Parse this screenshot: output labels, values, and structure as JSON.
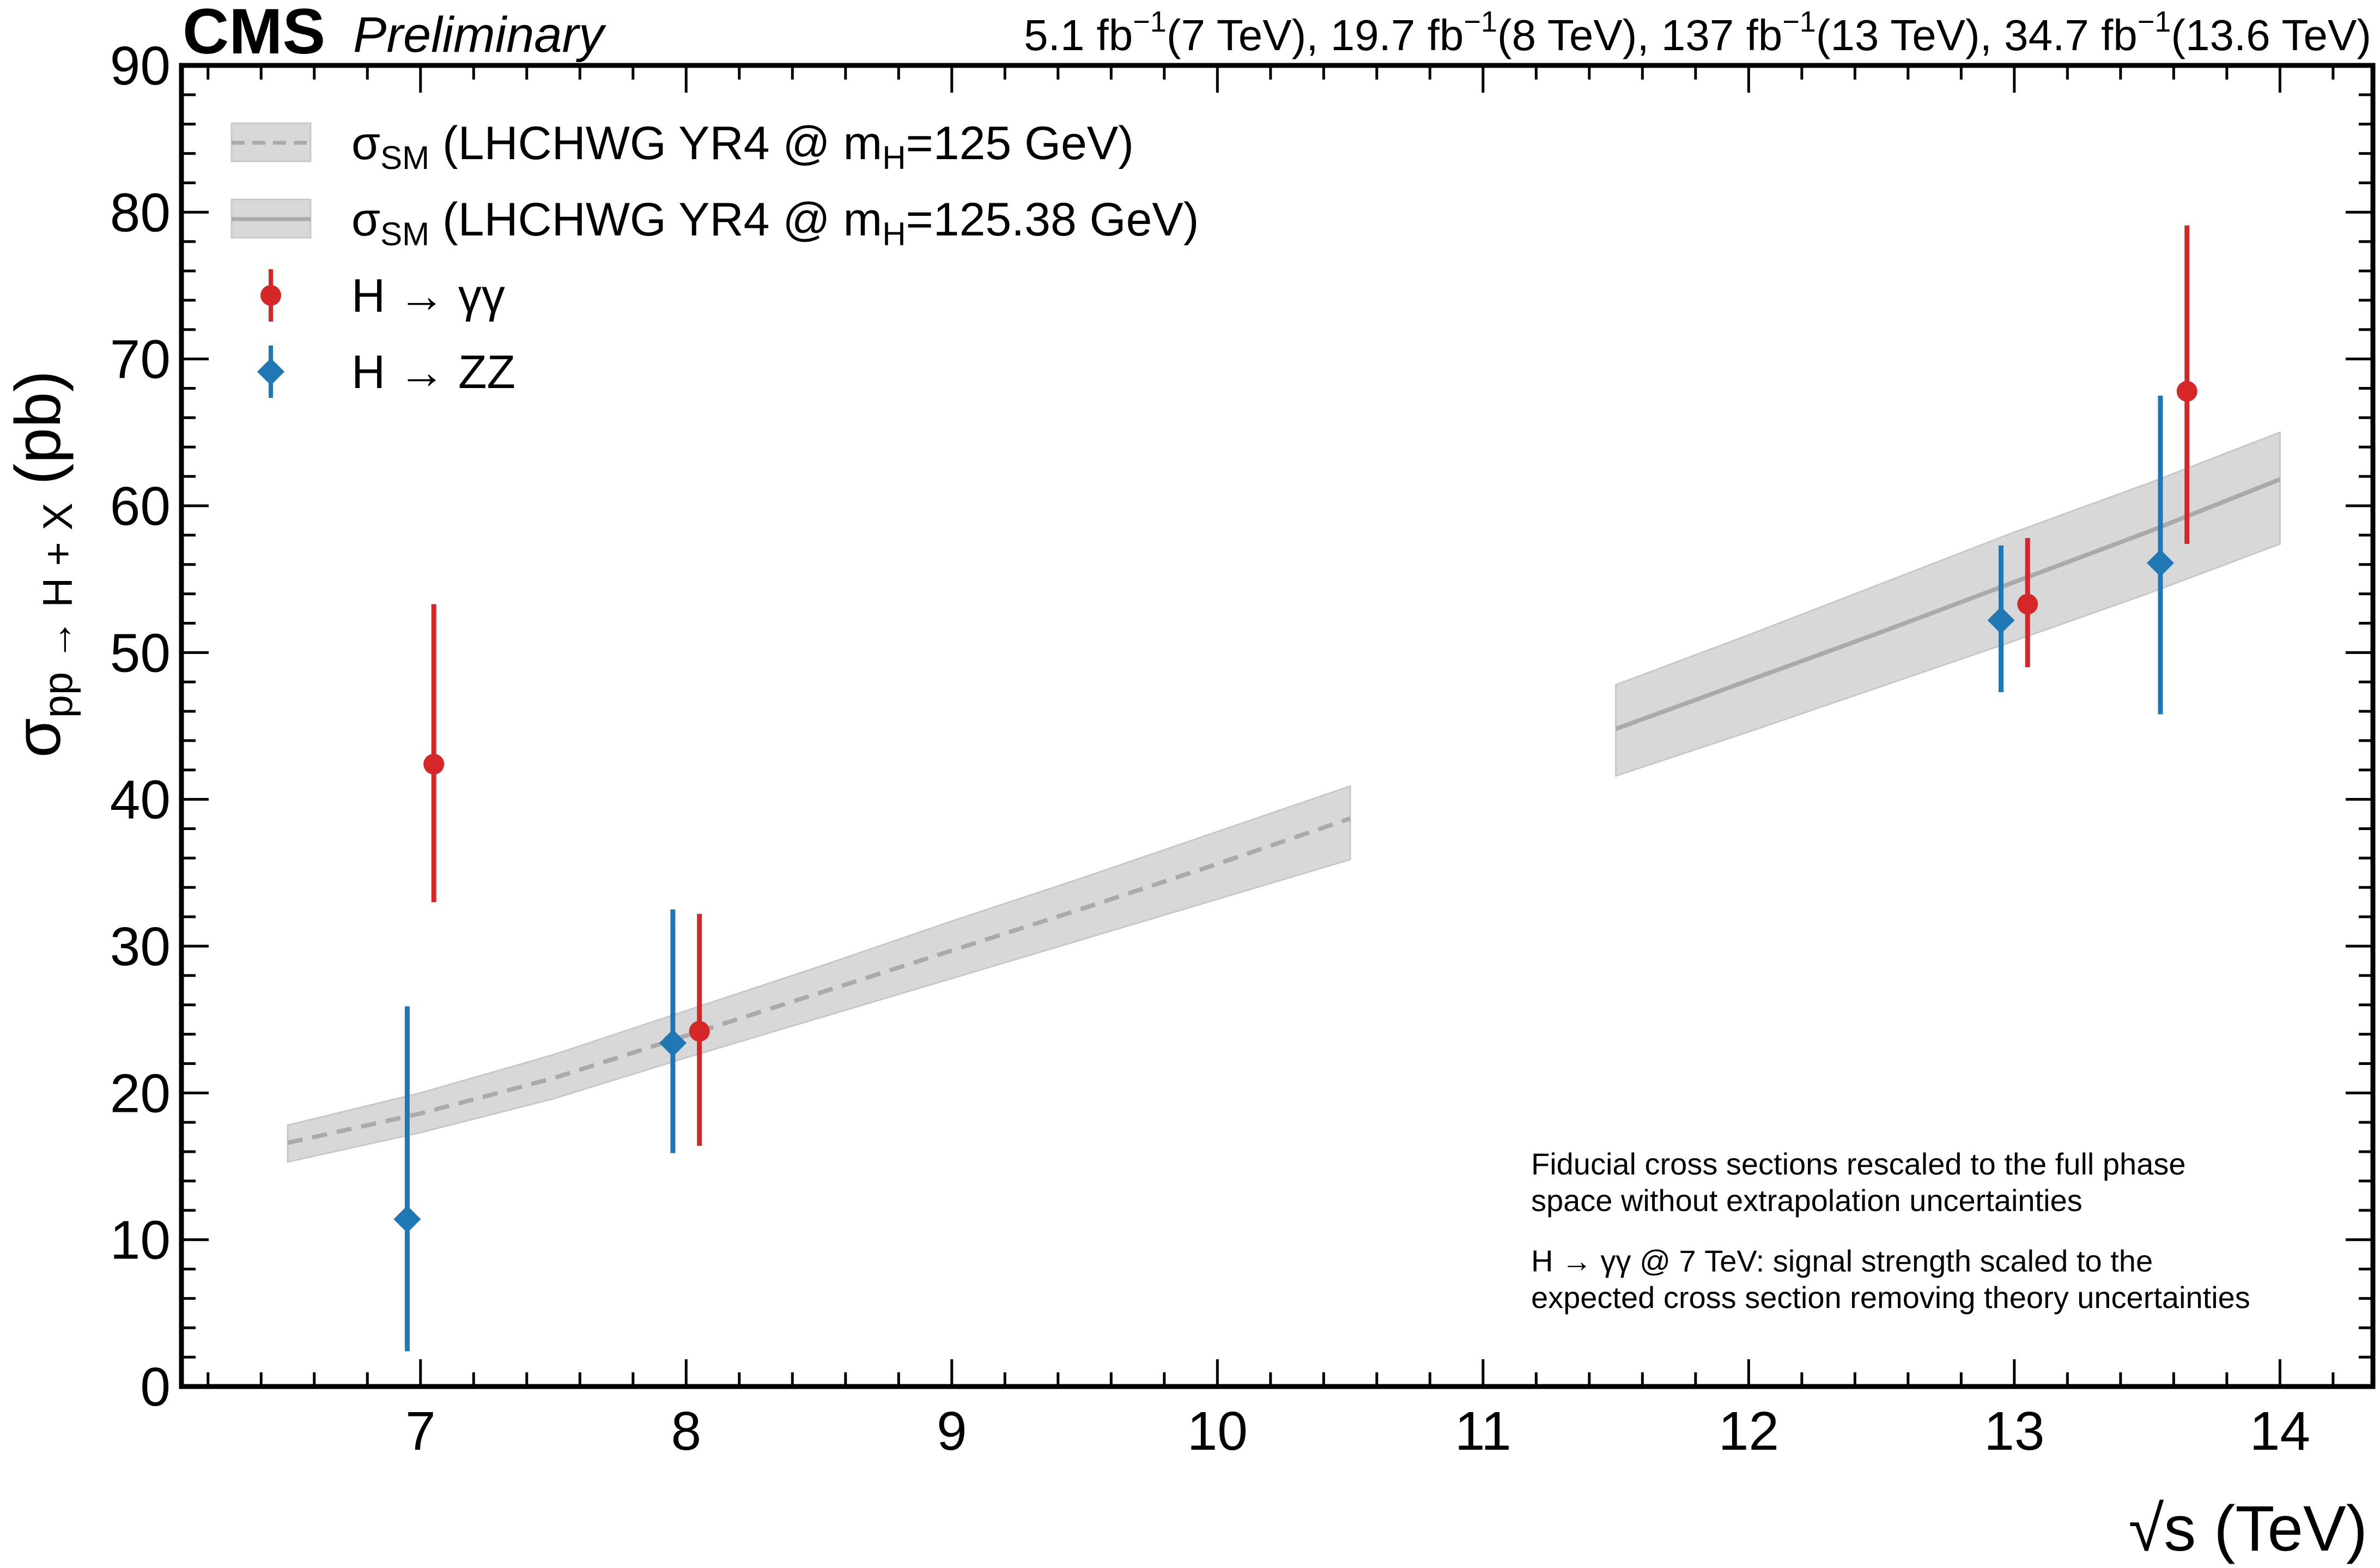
{
  "header": {
    "experiment": "CMS",
    "status": "Preliminary",
    "lumi_parts": [
      {
        "base": "5.1 fb",
        "sup": "−1",
        "tail": "(7 TeV), "
      },
      {
        "base": "19.7 fb",
        "sup": "−1",
        "tail": "(8 TeV), "
      },
      {
        "base": "137 fb",
        "sup": "−1",
        "tail": "(13 TeV), "
      },
      {
        "base": "34.7 fb",
        "sup": "−1",
        "tail": "(13.6 TeV)"
      }
    ]
  },
  "legend": [
    {
      "key": "sm125",
      "pre": "σ",
      "sub": "SM",
      "mid": " (LHCHWG YR4 @ m",
      "sub2": "H",
      "post": "=125 GeV)"
    },
    {
      "key": "sm12538",
      "pre": "σ",
      "sub": "SM",
      "mid": " (LHCHWG YR4 @ m",
      "sub2": "H",
      "post": "=125.38 GeV)"
    },
    {
      "key": "hgg",
      "pre": "H → γγ",
      "sub": "",
      "mid": "",
      "sub2": "",
      "post": ""
    },
    {
      "key": "hzz",
      "pre": "H → ZZ",
      "sub": "",
      "mid": "",
      "sub2": "",
      "post": ""
    }
  ],
  "notes": [
    "Fiducial cross sections rescaled to the full phase",
    "space without extrapolation uncertainties",
    "H → γγ @ 7 TeV: signal strength scaled to the",
    "expected cross section removing theory uncertainties"
  ],
  "chart_data": {
    "type": "scatter",
    "title": "",
    "xlabel": {
      "main": "√s",
      "unit": "(TeV)"
    },
    "ylabel": {
      "pre": "σ",
      "sub": "pp → H + X",
      "post": "(pb)"
    },
    "xlim": [
      6.1,
      14.35
    ],
    "ylim": [
      0,
      90
    ],
    "x_ticks": [
      7,
      8,
      9,
      10,
      11,
      12,
      13,
      14
    ],
    "y_ticks": [
      0,
      10,
      20,
      30,
      40,
      50,
      60,
      70,
      80,
      90
    ],
    "bands": [
      {
        "name": "σSM (LHCHWG YR4 @ mH=125 GeV)",
        "style": "dashed",
        "line_color": "#aaaaaa",
        "fill_color": "#d8d8d8",
        "x": [
          6.5,
          7.0,
          7.5,
          8.0,
          8.5,
          9.0,
          9.5,
          10.0,
          10.5
        ],
        "y": [
          16.6,
          18.6,
          21.0,
          23.9,
          26.8,
          29.7,
          32.6,
          35.6,
          38.7
        ],
        "y_low": [
          15.3,
          17.3,
          19.6,
          22.4,
          25.1,
          27.8,
          30.5,
          33.2,
          35.9
        ],
        "y_high": [
          17.8,
          20.0,
          22.6,
          25.6,
          28.6,
          31.7,
          34.7,
          37.8,
          40.9
        ]
      },
      {
        "name": "σSM (LHCHWG YR4 @ mH=125.38 GeV)",
        "style": "solid",
        "line_color": "#aaaaaa",
        "fill_color": "#d8d8d8",
        "x": [
          11.5,
          12.0,
          12.5,
          13.0,
          13.5,
          14.0
        ],
        "y": [
          44.8,
          48.1,
          51.4,
          54.8,
          58.2,
          61.8
        ],
        "y_low": [
          41.6,
          44.6,
          47.7,
          50.8,
          54.0,
          57.4
        ],
        "y_high": [
          47.8,
          51.2,
          54.7,
          58.2,
          61.5,
          65.0
        ]
      }
    ],
    "series": [
      {
        "name": "H → γγ",
        "marker": "circle",
        "color": "#d62728",
        "points": [
          {
            "x": 7.05,
            "y": 42.4,
            "ylo": 33.0,
            "yhi": 53.3
          },
          {
            "x": 8.05,
            "y": 24.2,
            "ylo": 16.4,
            "yhi": 32.2
          },
          {
            "x": 13.05,
            "y": 53.3,
            "ylo": 49.0,
            "yhi": 57.8
          },
          {
            "x": 13.65,
            "y": 67.8,
            "ylo": 57.4,
            "yhi": 79.1
          }
        ]
      },
      {
        "name": "H → ZZ",
        "marker": "diamond",
        "color": "#1f77b4",
        "points": [
          {
            "x": 6.95,
            "y": 11.4,
            "ylo": 2.4,
            "yhi": 25.9
          },
          {
            "x": 7.95,
            "y": 23.4,
            "ylo": 15.9,
            "yhi": 32.5
          },
          {
            "x": 12.95,
            "y": 52.2,
            "ylo": 47.3,
            "yhi": 57.3
          },
          {
            "x": 13.55,
            "y": 56.1,
            "ylo": 45.8,
            "yhi": 67.5
          }
        ]
      }
    ],
    "legend_position": "top-left",
    "grid": false
  }
}
